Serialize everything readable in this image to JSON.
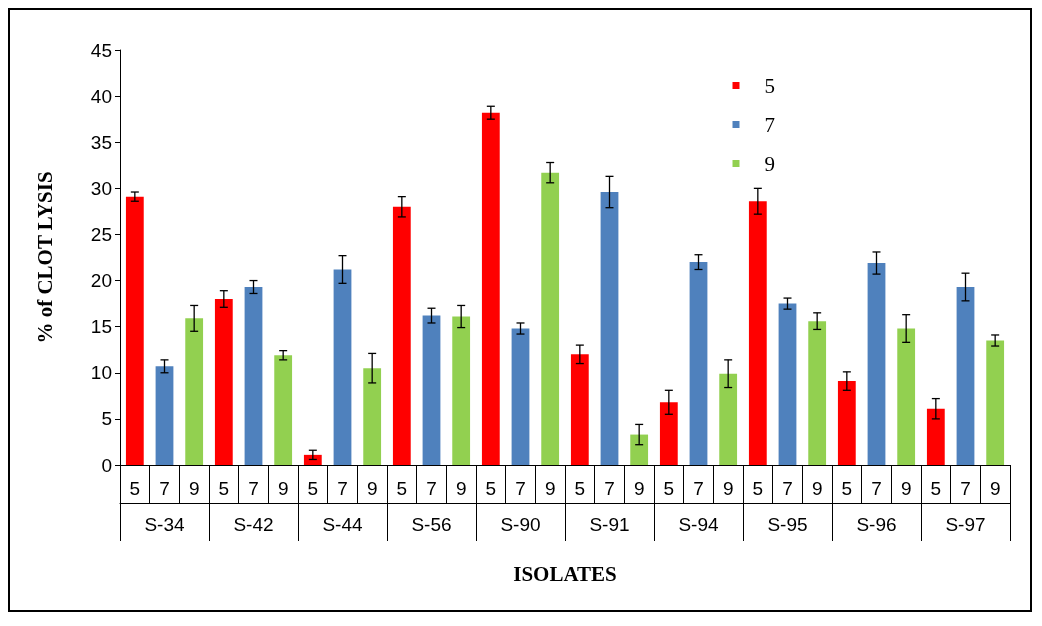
{
  "chart_data": {
    "type": "bar",
    "xlabel": "ISOLATES",
    "ylabel": "% of CLOT LYSIS",
    "categories": [
      "S-34",
      "S-42",
      "S-44",
      "S-56",
      "S-90",
      "S-91",
      "S-94",
      "S-95",
      "S-96",
      "S-97"
    ],
    "series": [
      {
        "name": "5",
        "color": "#ff0000",
        "values": [
          29.1,
          18.0,
          1.1,
          28.0,
          38.2,
          12.0,
          6.8,
          28.6,
          9.1,
          6.1
        ],
        "errors": [
          0.5,
          0.9,
          0.5,
          1.1,
          0.7,
          1.0,
          1.3,
          1.4,
          1.0,
          1.1
        ]
      },
      {
        "name": "7",
        "color": "#4f81bd",
        "values": [
          10.7,
          19.3,
          21.2,
          16.2,
          14.8,
          29.6,
          22.0,
          17.5,
          21.9,
          19.3
        ],
        "errors": [
          0.7,
          0.7,
          1.5,
          0.8,
          0.6,
          1.7,
          0.8,
          0.6,
          1.2,
          1.5
        ]
      },
      {
        "name": "9",
        "color": "#92d050",
        "values": [
          15.9,
          11.9,
          10.5,
          16.1,
          31.7,
          3.3,
          9.9,
          15.6,
          14.8,
          13.5
        ],
        "errors": [
          1.4,
          0.5,
          1.6,
          1.2,
          1.1,
          1.1,
          1.5,
          0.9,
          1.5,
          0.6
        ]
      }
    ],
    "ylim": [
      0,
      45
    ],
    "yticks": [
      0,
      5,
      10,
      15,
      20,
      25,
      30,
      35,
      40,
      45
    ],
    "grid": false,
    "legend": "top right"
  }
}
